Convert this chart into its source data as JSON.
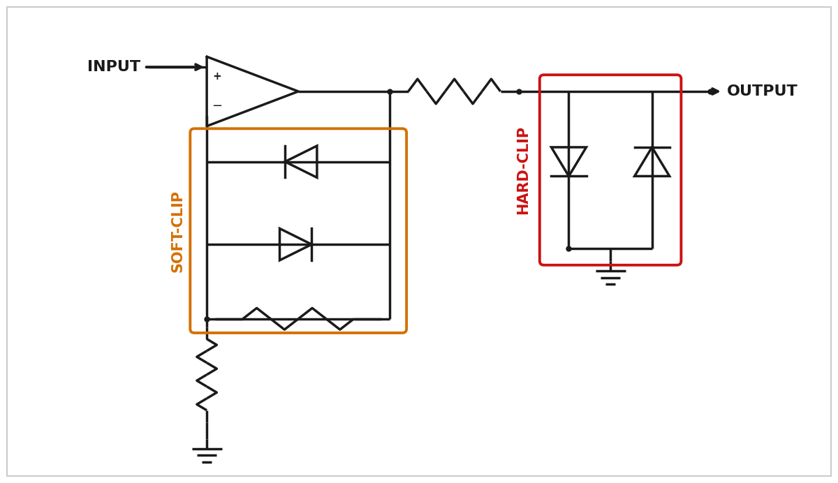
{
  "bg_color": "#ffffff",
  "line_color": "#1a1a1a",
  "line_width": 2.5,
  "soft_clip_color": "#d47000",
  "hard_clip_color": "#cc1111",
  "input_label": "INPUT",
  "output_label": "OUTPUT",
  "soft_clip_label": "SOFT-CLIP",
  "hard_clip_label": "HARD-CLIP",
  "label_fontsize": 16,
  "clip_label_fontsize": 15,
  "border_color": "#cccccc"
}
